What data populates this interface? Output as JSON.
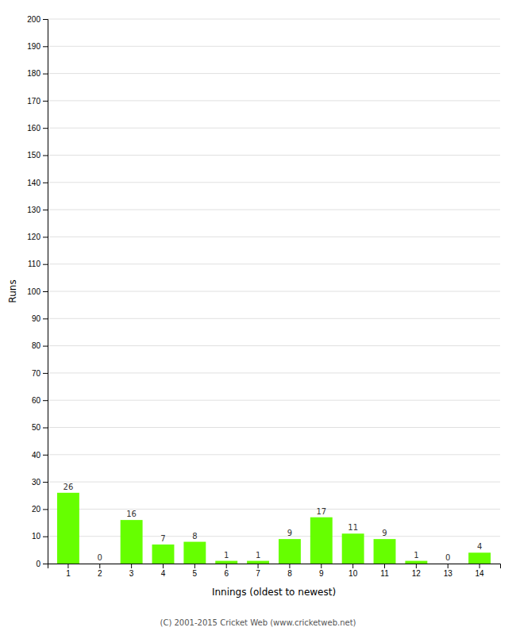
{
  "chart_data": {
    "type": "bar",
    "xlabel": "Innings (oldest to newest)",
    "ylabel": "Runs",
    "categories": [
      "1",
      "2",
      "3",
      "4",
      "5",
      "6",
      "7",
      "8",
      "9",
      "10",
      "11",
      "12",
      "13",
      "14"
    ],
    "values": [
      26,
      0,
      16,
      7,
      8,
      1,
      1,
      9,
      17,
      11,
      9,
      1,
      0,
      4
    ],
    "color": "#66ff00",
    "ylim": [
      0,
      200
    ],
    "yticks": [
      0,
      10,
      20,
      30,
      40,
      50,
      60,
      70,
      80,
      90,
      100,
      110,
      120,
      130,
      140,
      150,
      160,
      170,
      180,
      190,
      200
    ],
    "grid": true,
    "data_labels": true,
    "annotations": [
      "(C) 2001-2015 Cricket Web (www.cricketweb.net)"
    ]
  }
}
